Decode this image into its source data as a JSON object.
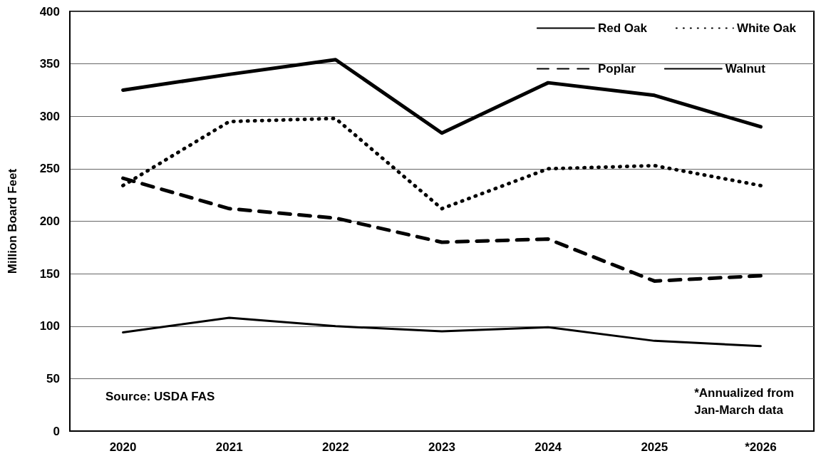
{
  "chart_data": {
    "type": "line",
    "ylabel": "Million Board Feet",
    "categories": [
      "2020",
      "2021",
      "2022",
      "2023",
      "2024",
      "2025",
      "*2026"
    ],
    "series": [
      {
        "name": "Red Oak",
        "color": "#000000",
        "line_style": "solid",
        "values": [
          325,
          340,
          354,
          284,
          332,
          320,
          290
        ]
      },
      {
        "name": "White Oak",
        "color": "#000000",
        "line_style": "dotted",
        "values": [
          234,
          295,
          298,
          212,
          250,
          253,
          234
        ]
      },
      {
        "name": "Poplar",
        "color": "#000000",
        "line_style": "dashed",
        "values": [
          241,
          212,
          203,
          180,
          183,
          143,
          148
        ]
      },
      {
        "name": "Walnut",
        "color": "#000000",
        "line_style": "solid",
        "values": [
          94,
          108,
          100,
          95,
          99,
          86,
          81
        ]
      }
    ],
    "ylim": [
      0,
      400
    ],
    "yticks": [
      0,
      50,
      100,
      150,
      200,
      250,
      300,
      350,
      400
    ],
    "grid": "y",
    "legend": "top right",
    "marker": "none",
    "annotations": [
      "Source: USDA FAS",
      "*Annualized from\nJan-March data"
    ]
  }
}
